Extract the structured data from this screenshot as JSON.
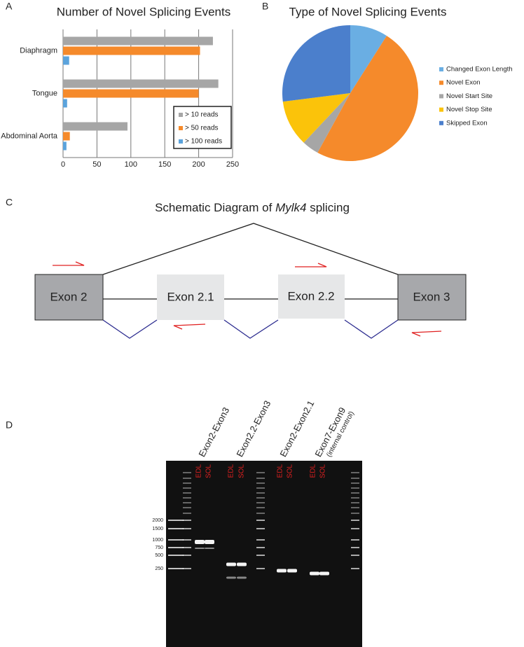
{
  "chart_data": [
    {
      "type": "hbar",
      "title": "Number of Novel Splicing Events",
      "categories": [
        "Diaphragm",
        "Tongue",
        "Abdominal Aorta"
      ],
      "series": [
        {
          "name": "> 10 reads",
          "color": "#a6a6a6",
          "values": [
            221,
            229,
            95
          ]
        },
        {
          "name": "> 50 reads",
          "color": "#f58a2b",
          "values": [
            202,
            200,
            10
          ]
        },
        {
          "name": "> 100 reads",
          "color": "#5ba3dc",
          "values": [
            9,
            6,
            5
          ]
        }
      ],
      "xlim": [
        0,
        250
      ],
      "xticks": [
        0,
        50,
        100,
        150,
        200,
        250
      ],
      "grid": true,
      "legend": "lower-right"
    },
    {
      "type": "pie",
      "title": "Type of Novel Splicing Events",
      "categories": [
        "Changed Exon Length",
        "Novel Exon",
        "Novel Start Site",
        "Novel Stop Site",
        "Skipped Exon"
      ],
      "values": [
        9,
        49,
        4,
        11,
        27
      ],
      "colors": [
        "#6aaee3",
        "#f58a2b",
        "#a6a6a6",
        "#fbc30a",
        "#4b7fcc"
      ],
      "legend": "right"
    }
  ],
  "panel_labels": [
    "A",
    "B",
    "C",
    "D"
  ],
  "diagram": {
    "title_prefix": "Schematic Diagram of",
    "title_gene": "Mylk4",
    "title_suffix": "splicing",
    "exons": [
      "Exon 2",
      "Exon 2.1",
      "Exon 2.2",
      "Exon 3"
    ]
  },
  "gel": {
    "primers": [
      "Exon2-Exon3",
      "Exon2.2-Exon3",
      "Exon2-Exon2.1",
      "Exon7-Exon9"
    ],
    "primer_note": "(internal control)",
    "lanes": [
      [
        "EDL",
        "SOL"
      ],
      [
        "EDL",
        "SOL"
      ],
      [
        "EDL",
        "SOL"
      ],
      [
        "EDL",
        "SOL"
      ]
    ],
    "ladder": [
      2000,
      1500,
      1000,
      750,
      500,
      250
    ]
  }
}
